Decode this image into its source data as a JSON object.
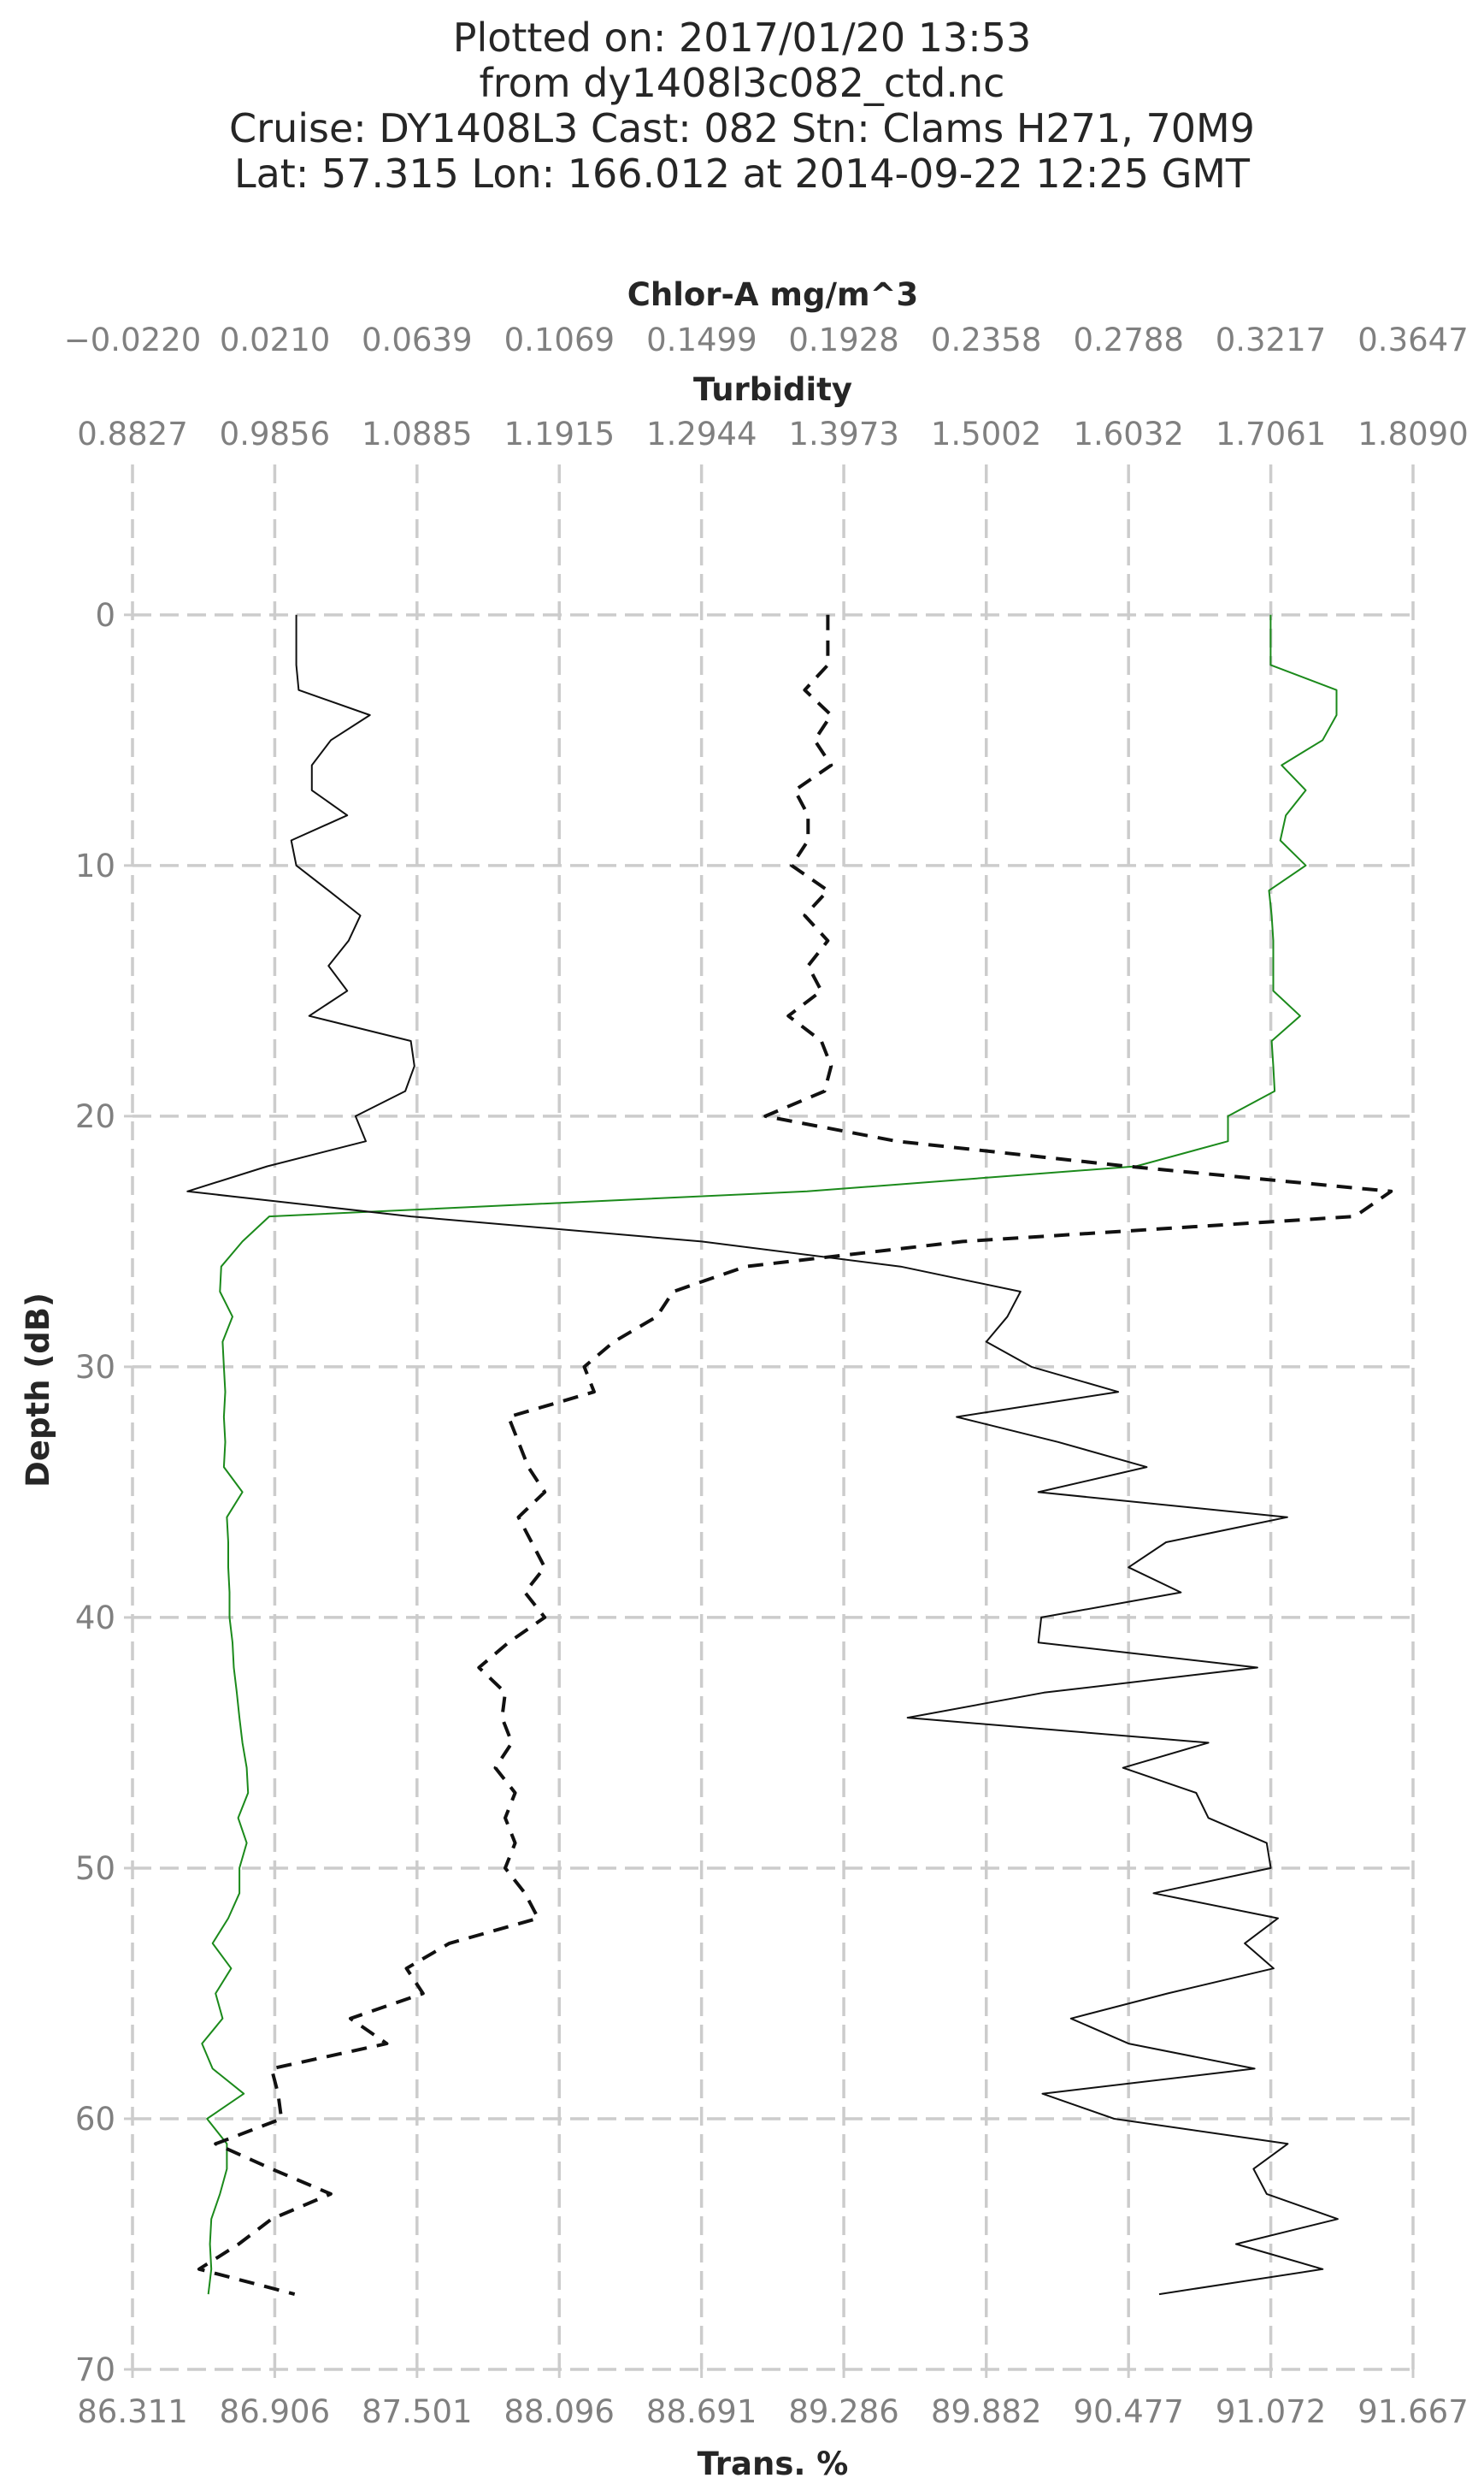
{
  "header": {
    "lines": [
      "Plotted on: 2017/01/20 13:53",
      "from dy1408l3c082_ctd.nc",
      "Cruise: DY1408L3  Cast: 082  Stn: Clams H271, 70M9",
      "Lat: 57.315  Lon: 166.012 at 2014-09-22 12:25 GMT"
    ]
  },
  "chart_data": {
    "type": "line",
    "ylabel": "Depth (dB)",
    "ylim": [
      70,
      -6
    ],
    "y_ticks": [
      0,
      10,
      20,
      30,
      40,
      50,
      60,
      70
    ],
    "y_tick_labels": [
      "0",
      "10",
      "20",
      "30",
      "40",
      "50",
      "60",
      "70"
    ],
    "axes": {
      "chlor": {
        "label": "Chlor-A mg/m^3",
        "range": [
          -0.022,
          0.3647
        ],
        "ticks": [
          -0.022,
          0.021,
          0.0639,
          0.1069,
          0.1499,
          0.1928,
          0.2358,
          0.2788,
          0.3217,
          0.3647
        ],
        "tick_labels": [
          "−0.0220",
          "0.0210",
          "0.0639",
          "0.1069",
          "0.1499",
          "0.1928",
          "0.2358",
          "0.2788",
          "0.3217",
          "0.3647"
        ]
      },
      "turbidity": {
        "label": "Turbidity",
        "range": [
          0.8827,
          1.809
        ],
        "ticks": [
          0.8827,
          0.9856,
          1.0885,
          1.1915,
          1.2944,
          1.3973,
          1.5002,
          1.6032,
          1.7061,
          1.809
        ],
        "tick_labels": [
          "0.8827",
          "0.9856",
          "1.0885",
          "1.1915",
          "1.2944",
          "1.3973",
          "1.5002",
          "1.6032",
          "1.7061",
          "1.8090"
        ]
      },
      "trans": {
        "label": "Trans. %",
        "range": [
          86.311,
          91.667
        ],
        "ticks": [
          86.311,
          86.906,
          87.501,
          88.096,
          88.691,
          89.286,
          89.882,
          90.477,
          91.072,
          91.667
        ],
        "tick_labels": [
          "86.311",
          "86.906",
          "87.501",
          "88.096",
          "88.691",
          "89.286",
          "89.882",
          "90.477",
          "91.072",
          "91.667"
        ]
      }
    },
    "series": [
      {
        "name": "Chlor-A",
        "axis": "chlor",
        "color": "#1b8a1b",
        "dash": "solid",
        "points": [
          [
            0.3217,
            0
          ],
          [
            0.3217,
            1
          ],
          [
            0.3217,
            2
          ],
          [
            0.3416,
            3
          ],
          [
            0.3416,
            4
          ],
          [
            0.3374,
            5
          ],
          [
            0.325,
            6
          ],
          [
            0.3323,
            7
          ],
          [
            0.3263,
            8
          ],
          [
            0.3246,
            9
          ],
          [
            0.3323,
            10
          ],
          [
            0.3212,
            11
          ],
          [
            0.322,
            12
          ],
          [
            0.3225,
            13
          ],
          [
            0.3225,
            14
          ],
          [
            0.3225,
            15
          ],
          [
            0.3306,
            16
          ],
          [
            0.322,
            17
          ],
          [
            0.3225,
            18
          ],
          [
            0.3229,
            19
          ],
          [
            0.3088,
            20
          ],
          [
            0.3088,
            21
          ],
          [
            0.281,
            22
          ],
          [
            0.1817,
            23
          ],
          [
            0.0193,
            24
          ],
          [
            0.0112,
            25
          ],
          [
            0.0048,
            26
          ],
          [
            0.0044,
            27
          ],
          [
            0.0082,
            28
          ],
          [
            0.0052,
            29
          ],
          [
            0.0056,
            30
          ],
          [
            0.006,
            31
          ],
          [
            0.0056,
            32
          ],
          [
            0.006,
            33
          ],
          [
            0.0056,
            34
          ],
          [
            0.0112,
            35
          ],
          [
            0.0065,
            36
          ],
          [
            0.0069,
            37
          ],
          [
            0.0069,
            38
          ],
          [
            0.0073,
            39
          ],
          [
            0.0073,
            40
          ],
          [
            0.0082,
            41
          ],
          [
            0.0086,
            42
          ],
          [
            0.0095,
            43
          ],
          [
            0.0103,
            44
          ],
          [
            0.0112,
            45
          ],
          [
            0.0125,
            46
          ],
          [
            0.0129,
            47
          ],
          [
            0.0099,
            48
          ],
          [
            0.0125,
            49
          ],
          [
            0.0103,
            50
          ],
          [
            0.0103,
            51
          ],
          [
            0.0069,
            52
          ],
          [
            0.0022,
            53
          ],
          [
            0.0078,
            54
          ],
          [
            0.0031,
            55
          ],
          [
            0.0052,
            56
          ],
          [
            -0.001,
            57
          ],
          [
            0.0022,
            58
          ],
          [
            0.0116,
            59
          ],
          [
            0.0005,
            60
          ],
          [
            0.0065,
            61
          ],
          [
            0.0065,
            62
          ],
          [
            0.0044,
            63
          ],
          [
            0.0018,
            64
          ],
          [
            0.0014,
            65
          ],
          [
            0.0018,
            66
          ],
          [
            0.0009,
            67
          ]
        ]
      },
      {
        "name": "Turbidity",
        "axis": "turbidity",
        "color": "#111111",
        "dash": "8 6",
        "points": [
          [
            1.3857,
            0
          ],
          [
            1.3857,
            1
          ],
          [
            1.3857,
            2
          ],
          [
            1.369,
            3
          ],
          [
            1.3881,
            4
          ],
          [
            1.3761,
            5
          ],
          [
            1.3881,
            6
          ],
          [
            1.3618,
            7
          ],
          [
            1.3714,
            8
          ],
          [
            1.3714,
            9
          ],
          [
            1.3595,
            10
          ],
          [
            1.3857,
            11
          ],
          [
            1.369,
            12
          ],
          [
            1.3857,
            13
          ],
          [
            1.3714,
            14
          ],
          [
            1.381,
            15
          ],
          [
            1.3571,
            16
          ],
          [
            1.381,
            17
          ],
          [
            1.3881,
            18
          ],
          [
            1.3833,
            19
          ],
          [
            1.3404,
            20
          ],
          [
            1.4356,
            21
          ],
          [
            1.6024,
            22
          ],
          [
            1.7931,
            23
          ],
          [
            1.7669,
            24
          ],
          [
            1.4833,
            25
          ],
          [
            1.3262,
            26
          ],
          [
            1.2738,
            27
          ],
          [
            1.2619,
            28
          ],
          [
            1.2309,
            29
          ],
          [
            1.2095,
            30
          ],
          [
            1.2166,
            31
          ],
          [
            1.1547,
            32
          ],
          [
            1.1619,
            33
          ],
          [
            1.169,
            34
          ],
          [
            1.1809,
            35
          ],
          [
            1.1619,
            36
          ],
          [
            1.1714,
            37
          ],
          [
            1.1809,
            38
          ],
          [
            1.1666,
            39
          ],
          [
            1.1809,
            40
          ],
          [
            1.1547,
            41
          ],
          [
            1.1333,
            42
          ],
          [
            1.1523,
            43
          ],
          [
            1.15,
            44
          ],
          [
            1.1571,
            45
          ],
          [
            1.1452,
            46
          ],
          [
            1.1595,
            47
          ],
          [
            1.1523,
            48
          ],
          [
            1.1595,
            49
          ],
          [
            1.1523,
            50
          ],
          [
            1.1666,
            51
          ],
          [
            1.1762,
            52
          ],
          [
            1.1119,
            53
          ],
          [
            1.0809,
            54
          ],
          [
            1.0928,
            55
          ],
          [
            1.0404,
            56
          ],
          [
            1.0666,
            57
          ],
          [
            0.9833,
            58
          ],
          [
            0.988,
            59
          ],
          [
            0.9904,
            60
          ],
          [
            0.9428,
            61
          ],
          [
            0.9833,
            62
          ],
          [
            1.0261,
            63
          ],
          [
            0.9833,
            64
          ],
          [
            0.9595,
            65
          ],
          [
            0.9309,
            66
          ],
          [
            1.0,
            67
          ]
        ]
      },
      {
        "name": "Trans. %",
        "axis": "trans",
        "color": "#111111",
        "dash": "solid",
        "points": [
          [
            86.996,
            0
          ],
          [
            86.996,
            1
          ],
          [
            86.996,
            2
          ],
          [
            87.006,
            3
          ],
          [
            87.304,
            4
          ],
          [
            87.141,
            5
          ],
          [
            87.061,
            6
          ],
          [
            87.061,
            7
          ],
          [
            87.209,
            8
          ],
          [
            86.975,
            9
          ],
          [
            86.996,
            10
          ],
          [
            87.131,
            11
          ],
          [
            87.264,
            12
          ],
          [
            87.215,
            13
          ],
          [
            87.131,
            14
          ],
          [
            87.209,
            15
          ],
          [
            87.05,
            16
          ],
          [
            87.475,
            17
          ],
          [
            87.49,
            18
          ],
          [
            87.452,
            19
          ],
          [
            87.244,
            20
          ],
          [
            87.287,
            21
          ],
          [
            86.875,
            22
          ],
          [
            86.541,
            23
          ],
          [
            87.475,
            24
          ],
          [
            88.691,
            25
          ],
          [
            89.524,
            26
          ],
          [
            90.025,
            27
          ],
          [
            89.97,
            28
          ],
          [
            89.882,
            29
          ],
          [
            90.071,
            30
          ],
          [
            90.434,
            31
          ],
          [
            89.758,
            32
          ],
          [
            90.182,
            33
          ],
          [
            90.553,
            34
          ],
          [
            90.1,
            35
          ],
          [
            91.141,
            36
          ],
          [
            90.634,
            37
          ],
          [
            90.477,
            38
          ],
          [
            90.696,
            39
          ],
          [
            90.112,
            40
          ],
          [
            90.1,
            41
          ],
          [
            91.016,
            42
          ],
          [
            90.123,
            43
          ],
          [
            89.553,
            44
          ],
          [
            90.811,
            45
          ],
          [
            90.454,
            46
          ],
          [
            90.76,
            47
          ],
          [
            90.811,
            48
          ],
          [
            91.055,
            49
          ],
          [
            91.072,
            50
          ],
          [
            90.582,
            51
          ],
          [
            91.102,
            52
          ],
          [
            90.963,
            53
          ],
          [
            91.084,
            54
          ],
          [
            90.64,
            55
          ],
          [
            90.236,
            56
          ],
          [
            90.477,
            57
          ],
          [
            91.004,
            58
          ],
          [
            90.117,
            59
          ],
          [
            90.417,
            60
          ],
          [
            91.143,
            61
          ],
          [
            91.0,
            62
          ],
          [
            91.055,
            63
          ],
          [
            91.352,
            64
          ],
          [
            90.927,
            65
          ],
          [
            91.289,
            66
          ],
          [
            90.605,
            67
          ]
        ]
      }
    ]
  }
}
